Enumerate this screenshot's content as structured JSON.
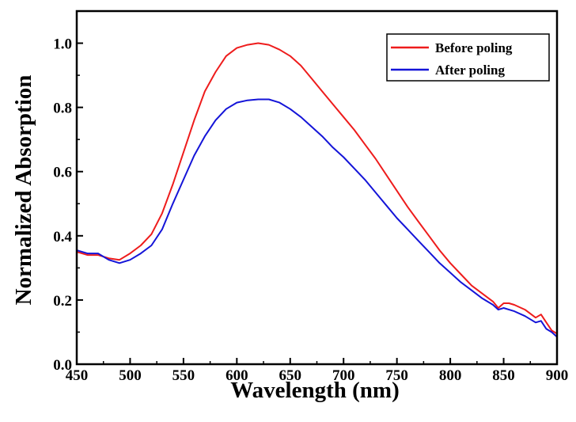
{
  "chart_data": {
    "type": "line",
    "title": "",
    "xlabel": "Wavelength (nm)",
    "ylabel": "Normalized Absorption",
    "xlim": [
      450,
      900
    ],
    "ylim": [
      0.0,
      1.1
    ],
    "x_ticks": [
      "450",
      "500",
      "550",
      "600",
      "650",
      "700",
      "750",
      "800",
      "850",
      "900"
    ],
    "y_ticks": [
      "0.0",
      "0.2",
      "0.4",
      "0.6",
      "0.8",
      "1.0"
    ],
    "grid": false,
    "legend_position": "top-right",
    "series": [
      {
        "name": "Before poling",
        "color": "#ee1c1c",
        "x": [
          450,
          460,
          470,
          480,
          490,
          500,
          510,
          520,
          530,
          540,
          550,
          560,
          570,
          580,
          590,
          600,
          610,
          620,
          630,
          640,
          650,
          660,
          670,
          680,
          690,
          700,
          710,
          720,
          730,
          740,
          750,
          760,
          770,
          780,
          790,
          800,
          810,
          820,
          830,
          840,
          845,
          850,
          855,
          860,
          870,
          880,
          885,
          890,
          895,
          900
        ],
        "y": [
          0.35,
          0.34,
          0.34,
          0.33,
          0.325,
          0.345,
          0.37,
          0.405,
          0.47,
          0.56,
          0.66,
          0.76,
          0.85,
          0.91,
          0.96,
          0.985,
          0.995,
          1.0,
          0.995,
          0.98,
          0.96,
          0.93,
          0.89,
          0.85,
          0.81,
          0.77,
          0.73,
          0.685,
          0.64,
          0.59,
          0.54,
          0.49,
          0.445,
          0.4,
          0.355,
          0.315,
          0.28,
          0.245,
          0.22,
          0.195,
          0.175,
          0.19,
          0.19,
          0.185,
          0.17,
          0.145,
          0.155,
          0.13,
          0.105,
          0.095
        ]
      },
      {
        "name": "After poling",
        "color": "#1414d8",
        "x": [
          450,
          460,
          470,
          480,
          490,
          500,
          510,
          520,
          530,
          540,
          550,
          560,
          570,
          580,
          590,
          600,
          610,
          620,
          630,
          640,
          650,
          660,
          670,
          680,
          690,
          700,
          710,
          720,
          730,
          740,
          750,
          760,
          770,
          780,
          790,
          800,
          810,
          820,
          830,
          840,
          845,
          850,
          855,
          860,
          870,
          880,
          885,
          890,
          895,
          900
        ],
        "y": [
          0.355,
          0.345,
          0.345,
          0.325,
          0.315,
          0.325,
          0.345,
          0.37,
          0.42,
          0.5,
          0.575,
          0.65,
          0.71,
          0.76,
          0.795,
          0.815,
          0.822,
          0.825,
          0.825,
          0.815,
          0.795,
          0.77,
          0.74,
          0.71,
          0.675,
          0.645,
          0.61,
          0.575,
          0.535,
          0.495,
          0.455,
          0.42,
          0.385,
          0.35,
          0.315,
          0.285,
          0.255,
          0.23,
          0.205,
          0.185,
          0.17,
          0.175,
          0.17,
          0.165,
          0.15,
          0.13,
          0.135,
          0.11,
          0.1,
          0.085
        ]
      }
    ]
  }
}
